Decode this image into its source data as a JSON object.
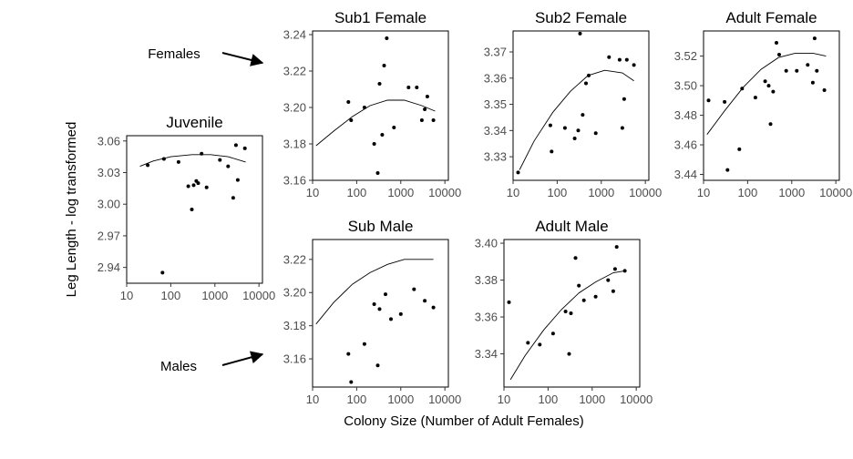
{
  "figure": {
    "ylabel": "Leg Length - log transformed",
    "xlabel": "Colony Size (Number of Adult Females)",
    "annotations": {
      "females": "Females",
      "males": "Males"
    }
  },
  "chart_data": [
    {
      "type": "scatter",
      "title": "Juvenile",
      "x_scale": "log",
      "xlim": [
        10,
        12000
      ],
      "ylim": [
        2.925,
        3.065
      ],
      "xticks": [
        "10",
        "100",
        "1000",
        "10000"
      ],
      "yticks": [
        "2.94",
        "2.97",
        "3.00",
        "3.03",
        "3.06"
      ],
      "grid": false,
      "points": [
        [
          30,
          3.037
        ],
        [
          65,
          2.935
        ],
        [
          70,
          3.043
        ],
        [
          150,
          3.04
        ],
        [
          250,
          3.017
        ],
        [
          300,
          2.995
        ],
        [
          330,
          3.018
        ],
        [
          380,
          3.022
        ],
        [
          420,
          3.02
        ],
        [
          500,
          3.048
        ],
        [
          650,
          3.016
        ],
        [
          1300,
          3.042
        ],
        [
          2000,
          3.036
        ],
        [
          2600,
          3.006
        ],
        [
          3000,
          3.056
        ],
        [
          3300,
          3.023
        ],
        [
          4800,
          3.053
        ]
      ],
      "fit": [
        [
          20,
          3.036
        ],
        [
          40,
          3.041
        ],
        [
          100,
          3.045
        ],
        [
          300,
          3.047
        ],
        [
          800,
          3.047
        ],
        [
          2000,
          3.045
        ],
        [
          5000,
          3.04
        ]
      ]
    },
    {
      "type": "scatter",
      "title": "Sub1 Female",
      "x_scale": "log",
      "xlim": [
        10,
        12000
      ],
      "ylim": [
        3.16,
        3.242
      ],
      "xticks": [
        "10",
        "100",
        "1000",
        "10000"
      ],
      "yticks": [
        "3.16",
        "3.18",
        "3.20",
        "3.22",
        "3.24"
      ],
      "grid": false,
      "points": [
        [
          65,
          3.203
        ],
        [
          75,
          3.193
        ],
        [
          150,
          3.2
        ],
        [
          250,
          3.18
        ],
        [
          300,
          3.164
        ],
        [
          330,
          3.213
        ],
        [
          380,
          3.185
        ],
        [
          420,
          3.223
        ],
        [
          480,
          3.238
        ],
        [
          700,
          3.189
        ],
        [
          1500,
          3.211
        ],
        [
          2300,
          3.211
        ],
        [
          3000,
          3.193
        ],
        [
          3500,
          3.199
        ],
        [
          4000,
          3.206
        ],
        [
          5500,
          3.193
        ]
      ],
      "fit": [
        [
          12,
          3.179
        ],
        [
          30,
          3.187
        ],
        [
          80,
          3.195
        ],
        [
          200,
          3.201
        ],
        [
          500,
          3.204
        ],
        [
          1200,
          3.204
        ],
        [
          3000,
          3.201
        ],
        [
          6000,
          3.198
        ]
      ]
    },
    {
      "type": "scatter",
      "title": "Sub2 Female",
      "x_scale": "log",
      "xlim": [
        10,
        12000
      ],
      "ylim": [
        3.321,
        3.378
      ],
      "xticks": [
        "10",
        "100",
        "1000",
        "10000"
      ],
      "yticks": [
        "3.33",
        "3.34",
        "3.35",
        "3.36",
        "3.37"
      ],
      "grid": false,
      "points": [
        [
          13,
          3.324
        ],
        [
          70,
          3.342
        ],
        [
          75,
          3.332
        ],
        [
          150,
          3.341
        ],
        [
          250,
          3.337
        ],
        [
          300,
          3.34
        ],
        [
          330,
          3.377
        ],
        [
          380,
          3.346
        ],
        [
          450,
          3.358
        ],
        [
          520,
          3.361
        ],
        [
          750,
          3.339
        ],
        [
          1500,
          3.368
        ],
        [
          2600,
          3.367
        ],
        [
          3000,
          3.341
        ],
        [
          3300,
          3.352
        ],
        [
          3800,
          3.367
        ],
        [
          5500,
          3.365
        ]
      ],
      "fit": [
        [
          14,
          3.325
        ],
        [
          30,
          3.336
        ],
        [
          80,
          3.347
        ],
        [
          200,
          3.355
        ],
        [
          500,
          3.361
        ],
        [
          1200,
          3.363
        ],
        [
          3000,
          3.362
        ],
        [
          5500,
          3.359
        ]
      ]
    },
    {
      "type": "scatter",
      "title": "Adult Female",
      "x_scale": "log",
      "xlim": [
        10,
        12000
      ],
      "ylim": [
        3.436,
        3.537
      ],
      "xticks": [
        "10",
        "100",
        "1000",
        "10000"
      ],
      "yticks": [
        "3.44",
        "3.46",
        "3.48",
        "3.50",
        "3.52"
      ],
      "grid": false,
      "points": [
        [
          13,
          3.49
        ],
        [
          30,
          3.489
        ],
        [
          35,
          3.443
        ],
        [
          65,
          3.457
        ],
        [
          75,
          3.498
        ],
        [
          150,
          3.492
        ],
        [
          250,
          3.503
        ],
        [
          300,
          3.5
        ],
        [
          330,
          3.474
        ],
        [
          380,
          3.496
        ],
        [
          450,
          3.529
        ],
        [
          520,
          3.521
        ],
        [
          750,
          3.51
        ],
        [
          1300,
          3.51
        ],
        [
          2300,
          3.514
        ],
        [
          3000,
          3.502
        ],
        [
          3300,
          3.532
        ],
        [
          3700,
          3.51
        ],
        [
          5500,
          3.497
        ]
      ],
      "fit": [
        [
          12,
          3.467
        ],
        [
          30,
          3.483
        ],
        [
          80,
          3.499
        ],
        [
          200,
          3.511
        ],
        [
          500,
          3.519
        ],
        [
          1200,
          3.522
        ],
        [
          3000,
          3.522
        ],
        [
          6000,
          3.52
        ]
      ]
    },
    {
      "type": "scatter",
      "title": "Sub Male",
      "x_scale": "log",
      "xlim": [
        10,
        12000
      ],
      "ylim": [
        3.143,
        3.232
      ],
      "xticks": [
        "10",
        "100",
        "1000",
        "10000"
      ],
      "yticks": [
        "3.16",
        "3.18",
        "3.20",
        "3.22"
      ],
      "grid": false,
      "points": [
        [
          65,
          3.163
        ],
        [
          75,
          3.146
        ],
        [
          150,
          3.169
        ],
        [
          250,
          3.193
        ],
        [
          300,
          3.156
        ],
        [
          330,
          3.19
        ],
        [
          450,
          3.199
        ],
        [
          600,
          3.184
        ],
        [
          1000,
          3.187
        ],
        [
          2000,
          3.202
        ],
        [
          3500,
          3.195
        ],
        [
          5500,
          3.191
        ]
      ],
      "fit": [
        [
          12,
          3.181
        ],
        [
          30,
          3.194
        ],
        [
          80,
          3.205
        ],
        [
          200,
          3.212
        ],
        [
          500,
          3.217
        ],
        [
          1200,
          3.22
        ],
        [
          3000,
          3.22
        ],
        [
          5500,
          3.22
        ]
      ]
    },
    {
      "type": "scatter",
      "title": "Adult Male",
      "x_scale": "log",
      "xlim": [
        10,
        12000
      ],
      "ylim": [
        3.322,
        3.402
      ],
      "xticks": [
        "10",
        "100",
        "1000",
        "10000"
      ],
      "yticks": [
        "3.34",
        "3.36",
        "3.38",
        "3.40"
      ],
      "grid": false,
      "points": [
        [
          13,
          3.368
        ],
        [
          35,
          3.346
        ],
        [
          65,
          3.345
        ],
        [
          130,
          3.351
        ],
        [
          250,
          3.363
        ],
        [
          300,
          3.34
        ],
        [
          330,
          3.362
        ],
        [
          420,
          3.392
        ],
        [
          500,
          3.377
        ],
        [
          650,
          3.369
        ],
        [
          1200,
          3.371
        ],
        [
          2300,
          3.38
        ],
        [
          3000,
          3.374
        ],
        [
          3300,
          3.386
        ],
        [
          3600,
          3.398
        ],
        [
          5500,
          3.385
        ]
      ],
      "fit": [
        [
          14,
          3.326
        ],
        [
          30,
          3.339
        ],
        [
          80,
          3.353
        ],
        [
          200,
          3.364
        ],
        [
          500,
          3.373
        ],
        [
          1200,
          3.379
        ],
        [
          3000,
          3.384
        ],
        [
          5500,
          3.385
        ]
      ]
    }
  ]
}
